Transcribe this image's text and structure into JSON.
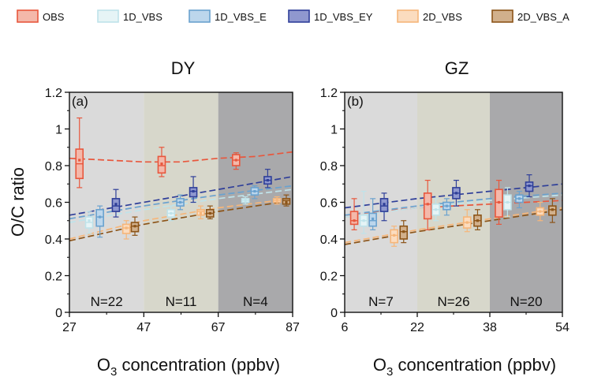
{
  "legend": [
    {
      "name": "OBS",
      "color": "#e8573d",
      "fill": "#f4b8aa"
    },
    {
      "name": "1D_VBS",
      "color": "#bfe3ea",
      "fill": "#e6f4f6"
    },
    {
      "name": "1D_VBS_E",
      "color": "#6aa2cf",
      "fill": "#bcd6ec"
    },
    {
      "name": "1D_VBS_EY",
      "color": "#2f3f99",
      "fill": "#8f98cf"
    },
    {
      "name": "2D_VBS",
      "color": "#f6b67a",
      "fill": "#fbdcbf"
    },
    {
      "name": "2D_VBS_A",
      "color": "#8c5418",
      "fill": "#d1b08c"
    }
  ],
  "chart_data": [
    {
      "type": "box",
      "title": "DY",
      "panel_label": "(a)",
      "ylabel": "O/C ratio",
      "xlabel_prefix": "O",
      "xlabel_sub": "3",
      "xlabel_suffix": " concentration (ppbv)",
      "xlim": [
        27,
        87
      ],
      "ylim": [
        0,
        1.2
      ],
      "xticks": [
        "27",
        "47",
        "67",
        "87"
      ],
      "yticks": [
        "0",
        "0.2",
        "0.4",
        "0.6",
        "0.8",
        "1",
        "1.2"
      ],
      "bands": [
        {
          "from": 27,
          "to": 47,
          "color": "#dadada",
          "count_label": "N=22"
        },
        {
          "from": 47,
          "to": 67,
          "color": "#d7d7cb",
          "count_label": "N=11"
        },
        {
          "from": 67,
          "to": 87,
          "color": "#a9a9ab",
          "count_label": "N=4"
        }
      ],
      "boxes": [
        {
          "series": 0,
          "x": 29.7,
          "q1": 0.73,
          "median": 0.81,
          "q3": 0.89,
          "mean": 0.83,
          "whisker_low": 0.68,
          "whisker_high": 1.06
        },
        {
          "series": 1,
          "x": 32.3,
          "q1": 0.46,
          "median": 0.49,
          "q3": 0.52,
          "mean": 0.5,
          "whisker_low": 0.43,
          "whisker_high": 0.55
        },
        {
          "series": 2,
          "x": 35.2,
          "q1": 0.47,
          "median": 0.52,
          "q3": 0.56,
          "mean": 0.52,
          "whisker_low": 0.41,
          "whisker_high": 0.58
        },
        {
          "series": 3,
          "x": 39.5,
          "q1": 0.55,
          "median": 0.58,
          "q3": 0.62,
          "mean": 0.59,
          "whisker_low": 0.52,
          "whisker_high": 0.67
        },
        {
          "series": 4,
          "x": 42.3,
          "q1": 0.43,
          "median": 0.46,
          "q3": 0.48,
          "mean": 0.46,
          "whisker_low": 0.4,
          "whisker_high": 0.5
        },
        {
          "series": 5,
          "x": 44.6,
          "q1": 0.44,
          "median": 0.47,
          "q3": 0.49,
          "mean": 0.47,
          "whisker_low": 0.42,
          "whisker_high": 0.52
        },
        {
          "series": 0,
          "x": 51.8,
          "q1": 0.76,
          "median": 0.8,
          "q3": 0.85,
          "mean": 0.81,
          "whisker_low": 0.74,
          "whisker_high": 0.9
        },
        {
          "series": 1,
          "x": 54.3,
          "q1": 0.52,
          "median": 0.54,
          "q3": 0.56,
          "mean": 0.54,
          "whisker_low": 0.5,
          "whisker_high": 0.58
        },
        {
          "series": 2,
          "x": 56.8,
          "q1": 0.58,
          "median": 0.6,
          "q3": 0.62,
          "mean": 0.6,
          "whisker_low": 0.56,
          "whisker_high": 0.64
        },
        {
          "series": 3,
          "x": 60.3,
          "q1": 0.63,
          "median": 0.66,
          "q3": 0.68,
          "mean": 0.66,
          "whisker_low": 0.6,
          "whisker_high": 0.74
        },
        {
          "series": 4,
          "x": 62.3,
          "q1": 0.53,
          "median": 0.55,
          "q3": 0.56,
          "mean": 0.54,
          "whisker_low": 0.51,
          "whisker_high": 0.58
        },
        {
          "series": 5,
          "x": 64.8,
          "q1": 0.52,
          "median": 0.54,
          "q3": 0.56,
          "mean": 0.54,
          "whisker_low": 0.51,
          "whisker_high": 0.58
        },
        {
          "series": 0,
          "x": 71.8,
          "q1": 0.8,
          "median": 0.83,
          "q3": 0.86,
          "mean": 0.83,
          "whisker_low": 0.78,
          "whisker_high": 0.87
        },
        {
          "series": 1,
          "x": 74.3,
          "q1": 0.6,
          "median": 0.61,
          "q3": 0.62,
          "mean": 0.61,
          "whisker_low": 0.59,
          "whisker_high": 0.63
        },
        {
          "series": 2,
          "x": 76.8,
          "q1": 0.64,
          "median": 0.66,
          "q3": 0.68,
          "mean": 0.66,
          "whisker_low": 0.62,
          "whisker_high": 0.69
        },
        {
          "series": 3,
          "x": 80.3,
          "q1": 0.7,
          "median": 0.72,
          "q3": 0.74,
          "mean": 0.72,
          "whisker_low": 0.68,
          "whisker_high": 0.78
        },
        {
          "series": 4,
          "x": 82.8,
          "q1": 0.6,
          "median": 0.61,
          "q3": 0.62,
          "mean": 0.61,
          "whisker_low": 0.59,
          "whisker_high": 0.63
        },
        {
          "series": 5,
          "x": 85.3,
          "q1": 0.59,
          "median": 0.61,
          "q3": 0.62,
          "mean": 0.6,
          "whisker_low": 0.58,
          "whisker_high": 0.64
        }
      ],
      "fits": [
        {
          "series": 0,
          "points": [
            [
              27,
              0.84
            ],
            [
              37,
              0.83
            ],
            [
              47,
              0.82
            ],
            [
              57,
              0.82
            ],
            [
              67,
              0.84
            ],
            [
              77,
              0.85
            ],
            [
              87,
              0.875
            ]
          ]
        },
        {
          "series": 3,
          "points": [
            [
              27,
              0.53
            ],
            [
              47,
              0.6
            ],
            [
              67,
              0.67
            ],
            [
              87,
              0.74
            ]
          ]
        },
        {
          "series": 2,
          "points": [
            [
              27,
              0.51
            ],
            [
              47,
              0.58
            ],
            [
              67,
              0.64
            ],
            [
              87,
              0.69
            ]
          ]
        },
        {
          "series": 1,
          "points": [
            [
              27,
              0.49
            ],
            [
              47,
              0.56
            ],
            [
              67,
              0.62
            ],
            [
              87,
              0.67
            ]
          ]
        },
        {
          "series": 4,
          "points": [
            [
              27,
              0.4
            ],
            [
              47,
              0.5
            ],
            [
              67,
              0.57
            ],
            [
              87,
              0.62
            ]
          ]
        },
        {
          "series": 5,
          "points": [
            [
              27,
              0.39
            ],
            [
              47,
              0.48
            ],
            [
              67,
              0.55
            ],
            [
              87,
              0.61
            ]
          ]
        }
      ]
    },
    {
      "type": "box",
      "title": "GZ",
      "panel_label": "(b)",
      "ylabel": "",
      "xlabel_prefix": "O",
      "xlabel_sub": "3",
      "xlabel_suffix": " concentration (ppbv)",
      "xlim": [
        6,
        54
      ],
      "ylim": [
        0,
        1.2
      ],
      "xticks": [
        "6",
        "22",
        "38",
        "54"
      ],
      "yticks": [
        "0",
        "0.2",
        "0.4",
        "0.6",
        "0.8",
        "1",
        "1.2"
      ],
      "bands": [
        {
          "from": 6,
          "to": 22,
          "color": "#dadada",
          "count_label": "N=7"
        },
        {
          "from": 22,
          "to": 38,
          "color": "#d7d7cb",
          "count_label": "N=26"
        },
        {
          "from": 38,
          "to": 54,
          "color": "#a9a9ab",
          "count_label": "N=20"
        }
      ],
      "boxes": [
        {
          "series": 0,
          "x": 8.1,
          "q1": 0.48,
          "median": 0.5,
          "q3": 0.55,
          "mean": 0.5,
          "whisker_low": 0.45,
          "whisker_high": 0.62
        },
        {
          "series": 1,
          "x": 10.2,
          "q1": 0.47,
          "median": 0.5,
          "q3": 0.53,
          "mean": 0.5,
          "whisker_low": 0.43,
          "whisker_high": 0.66
        },
        {
          "series": 2,
          "x": 12.2,
          "q1": 0.47,
          "median": 0.5,
          "q3": 0.54,
          "mean": 0.51,
          "whisker_low": 0.45,
          "whisker_high": 0.62
        },
        {
          "series": 3,
          "x": 14.7,
          "q1": 0.55,
          "median": 0.58,
          "q3": 0.62,
          "mean": 0.59,
          "whisker_low": 0.5,
          "whisker_high": 0.65
        },
        {
          "series": 4,
          "x": 16.9,
          "q1": 0.38,
          "median": 0.42,
          "q3": 0.45,
          "mean": 0.42,
          "whisker_low": 0.36,
          "whisker_high": 0.47
        },
        {
          "series": 5,
          "x": 19.0,
          "q1": 0.4,
          "median": 0.44,
          "q3": 0.47,
          "mean": 0.44,
          "whisker_low": 0.38,
          "whisker_high": 0.5
        },
        {
          "series": 0,
          "x": 24.3,
          "q1": 0.51,
          "median": 0.59,
          "q3": 0.65,
          "mean": 0.59,
          "whisker_low": 0.45,
          "whisker_high": 0.72
        },
        {
          "series": 1,
          "x": 26.1,
          "q1": 0.53,
          "median": 0.56,
          "q3": 0.59,
          "mean": 0.56,
          "whisker_low": 0.5,
          "whisker_high": 0.62
        },
        {
          "series": 2,
          "x": 28.5,
          "q1": 0.56,
          "median": 0.58,
          "q3": 0.6,
          "mean": 0.58,
          "whisker_low": 0.53,
          "whisker_high": 0.62
        },
        {
          "series": 3,
          "x": 30.6,
          "q1": 0.62,
          "median": 0.65,
          "q3": 0.68,
          "mean": 0.65,
          "whisker_low": 0.58,
          "whisker_high": 0.72
        },
        {
          "series": 4,
          "x": 33.0,
          "q1": 0.46,
          "median": 0.49,
          "q3": 0.52,
          "mean": 0.49,
          "whisker_low": 0.44,
          "whisker_high": 0.56
        },
        {
          "series": 5,
          "x": 35.3,
          "q1": 0.47,
          "median": 0.5,
          "q3": 0.53,
          "mean": 0.5,
          "whisker_low": 0.45,
          "whisker_high": 0.56
        },
        {
          "series": 0,
          "x": 40.0,
          "q1": 0.52,
          "median": 0.6,
          "q3": 0.67,
          "mean": 0.6,
          "whisker_low": 0.48,
          "whisker_high": 0.72
        },
        {
          "series": 1,
          "x": 41.9,
          "q1": 0.56,
          "median": 0.6,
          "q3": 0.64,
          "mean": 0.6,
          "whisker_low": 0.52,
          "whisker_high": 0.68
        },
        {
          "series": 2,
          "x": 44.5,
          "q1": 0.6,
          "median": 0.62,
          "q3": 0.64,
          "mean": 0.62,
          "whisker_low": 0.57,
          "whisker_high": 0.66
        },
        {
          "series": 3,
          "x": 46.7,
          "q1": 0.66,
          "median": 0.69,
          "q3": 0.71,
          "mean": 0.69,
          "whisker_low": 0.63,
          "whisker_high": 0.75
        },
        {
          "series": 4,
          "x": 49.1,
          "q1": 0.53,
          "median": 0.55,
          "q3": 0.57,
          "mean": 0.55,
          "whisker_low": 0.5,
          "whisker_high": 0.6
        },
        {
          "series": 5,
          "x": 51.8,
          "q1": 0.53,
          "median": 0.56,
          "q3": 0.58,
          "mean": 0.56,
          "whisker_low": 0.49,
          "whisker_high": 0.62
        }
      ],
      "fits": [
        {
          "series": 0,
          "points": [
            [
              6,
              0.52
            ],
            [
              14,
              0.55
            ],
            [
              22,
              0.57
            ],
            [
              30,
              0.58
            ],
            [
              38,
              0.59
            ],
            [
              46,
              0.6
            ],
            [
              54,
              0.61
            ]
          ]
        },
        {
          "series": 3,
          "points": [
            [
              6,
              0.57
            ],
            [
              22,
              0.62
            ],
            [
              38,
              0.66
            ],
            [
              54,
              0.7
            ]
          ]
        },
        {
          "series": 2,
          "points": [
            [
              6,
              0.53
            ],
            [
              22,
              0.58
            ],
            [
              38,
              0.62
            ],
            [
              54,
              0.65
            ]
          ]
        },
        {
          "series": 1,
          "points": [
            [
              6,
              0.52
            ],
            [
              22,
              0.57
            ],
            [
              38,
              0.61
            ],
            [
              54,
              0.64
            ]
          ]
        },
        {
          "series": 4,
          "points": [
            [
              6,
              0.38
            ],
            [
              22,
              0.45
            ],
            [
              38,
              0.51
            ],
            [
              54,
              0.57
            ]
          ]
        },
        {
          "series": 5,
          "points": [
            [
              6,
              0.37
            ],
            [
              22,
              0.44
            ],
            [
              38,
              0.5
            ],
            [
              54,
              0.56
            ]
          ]
        }
      ]
    }
  ]
}
